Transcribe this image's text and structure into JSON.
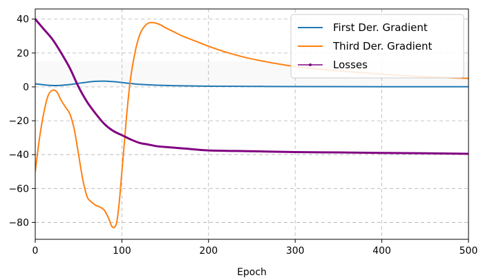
{
  "chart_data": {
    "type": "line",
    "title": "",
    "xlabel": "Epoch",
    "ylabel": "",
    "xlim": [
      0,
      500
    ],
    "ylim": [
      -90,
      46
    ],
    "xticks": [
      0,
      100,
      200,
      300,
      400,
      500
    ],
    "yticks": [
      40,
      20,
      0,
      -20,
      -40,
      -60,
      -80
    ],
    "grid": true,
    "legend_position": "top-right",
    "series": [
      {
        "name": "First Der. Gradient",
        "color": "#1f77b4",
        "x": [
          0,
          10,
          20,
          30,
          40,
          50,
          60,
          70,
          80,
          90,
          100,
          110,
          120,
          140,
          160,
          200,
          250,
          300,
          400,
          500
        ],
        "y": [
          1.8,
          1.2,
          0.8,
          0.9,
          1.4,
          2.1,
          2.8,
          3.3,
          3.4,
          3.1,
          2.6,
          2.0,
          1.5,
          1.0,
          0.7,
          0.4,
          0.3,
          0.2,
          0.1,
          0.1
        ]
      },
      {
        "name": "Third Der. Gradient",
        "color": "#ff7f0e",
        "x": [
          0,
          5,
          10,
          15,
          20,
          25,
          30,
          35,
          40,
          45,
          50,
          55,
          60,
          65,
          70,
          75,
          80,
          85,
          88,
          91,
          94,
          97,
          100,
          103,
          106,
          110,
          115,
          120,
          125,
          130,
          135,
          140,
          145,
          150,
          160,
          170,
          180,
          200,
          220,
          250,
          300,
          350,
          400,
          450,
          500
        ],
        "y": [
          -50,
          -30,
          -15,
          -5,
          -2,
          -3,
          -8,
          -12,
          -16,
          -25,
          -40,
          -55,
          -65,
          -68,
          -70,
          -71,
          -73,
          -78,
          -82,
          -83,
          -80,
          -68,
          -50,
          -32,
          -14,
          5,
          20,
          30,
          35,
          37.5,
          38,
          37.5,
          36.5,
          35,
          32.5,
          30,
          28,
          24,
          20.5,
          16.5,
          12,
          9.5,
          7.5,
          6,
          5
        ]
      },
      {
        "name": "Losses",
        "color": "#800080",
        "x": [
          0,
          5,
          10,
          20,
          30,
          40,
          50,
          60,
          70,
          80,
          90,
          100,
          110,
          120,
          130,
          140,
          150,
          175,
          200,
          250,
          300,
          350,
          400,
          450,
          500
        ],
        "y": [
          40,
          37,
          34,
          28,
          20,
          11,
          0,
          -9,
          -16,
          -22,
          -26,
          -28.5,
          -31,
          -33,
          -34,
          -35,
          -35.5,
          -36.5,
          -37.5,
          -38,
          -38.5,
          -38.7,
          -39,
          -39.2,
          -39.5
        ]
      }
    ]
  }
}
